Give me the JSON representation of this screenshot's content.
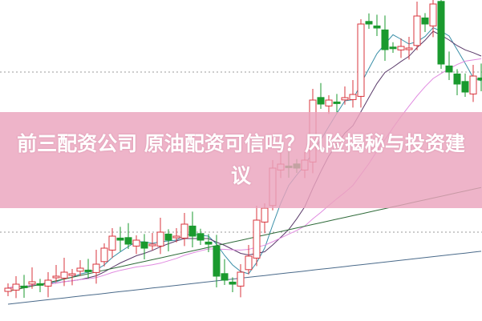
{
  "title": "前三配资公司 原油配资可信吗？风险揭秘与投资建议",
  "chart_data": {
    "type": "candlestick",
    "title": "",
    "xlabel": "",
    "ylabel": "",
    "grid": "dotted horizontal",
    "closes": [
      10,
      11.25,
      10.5,
      12,
      11.25,
      12.5,
      13.75,
      15,
      14.5,
      16.25,
      15.5,
      17.5,
      22.5,
      26.25,
      25,
      23.75,
      25,
      22.5,
      23.75,
      27.5,
      25,
      26.25,
      30,
      26.25,
      25,
      23.75,
      13.75,
      12.5,
      11.25,
      15,
      20,
      31.25,
      35,
      47.5,
      48.75,
      48,
      47.5,
      50,
      68.75,
      67.5,
      68.75,
      68,
      69.5,
      70.5,
      92.5,
      92.5,
      91.25,
      84.5,
      85,
      85.5,
      85,
      95,
      92.5,
      98.75,
      80,
      77.5,
      73.75,
      71.25,
      76.25,
      75
    ],
    "moving_averages": [
      5,
      10,
      20,
      60
    ],
    "colors": {
      "up": "#d9363e",
      "down": "#1a9a2e",
      "ma5": "#3a8fa8",
      "ma10": "#5a3a6a",
      "ma20": "#e08ae0",
      "ma60": "#2f6b3a",
      "ma120": "#4a6a8a",
      "banner": "#eaa3bd"
    }
  }
}
